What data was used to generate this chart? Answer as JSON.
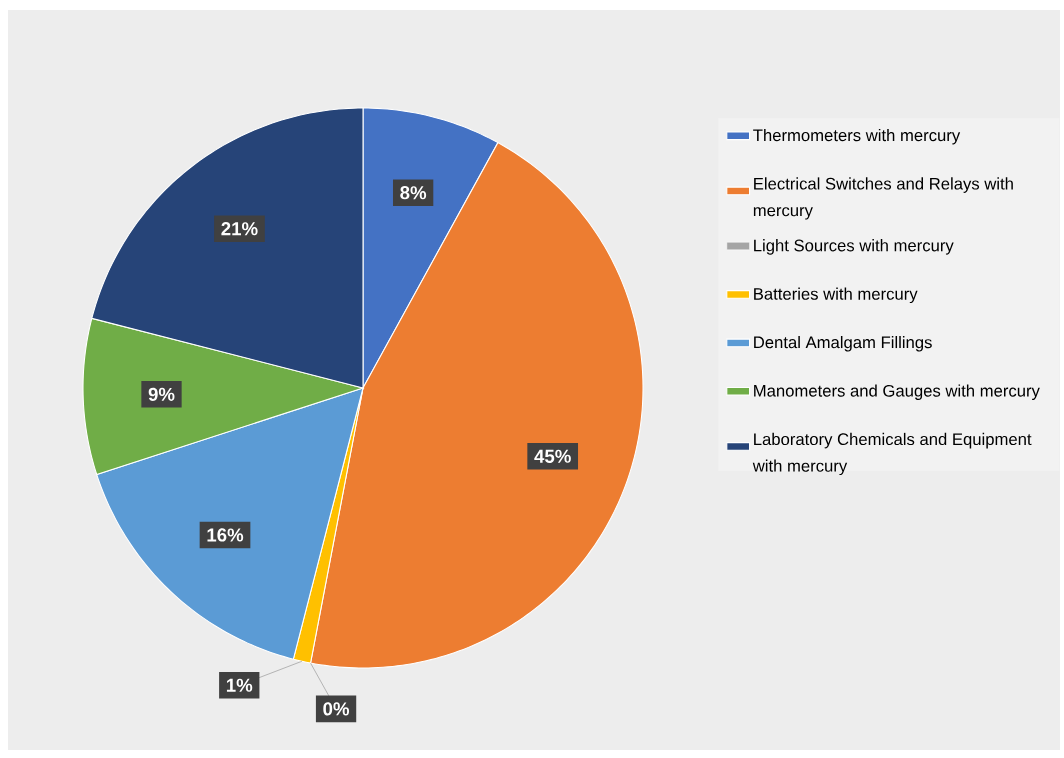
{
  "chart_data": {
    "type": "pie",
    "categories": [
      "Thermometers with mercury",
      "Electrical Switches and Relays with mercury",
      "Light Sources with mercury",
      "Batteries with mercury",
      "Dental Amalgam Fillings",
      "Manometers and Gauges with mercury",
      "Laboratory Chemicals and Equipment with mercury"
    ],
    "values": [
      8,
      45,
      0,
      1,
      16,
      9,
      21
    ],
    "value_labels": [
      "8%",
      "45%",
      "0%",
      "1%",
      "16%",
      "9%",
      "21%"
    ],
    "colors": [
      "#4472c4",
      "#ed7d31",
      "#a5a5a5",
      "#ffc000",
      "#5b9bd5",
      "#70ad47",
      "#264478"
    ],
    "legend": "right"
  }
}
